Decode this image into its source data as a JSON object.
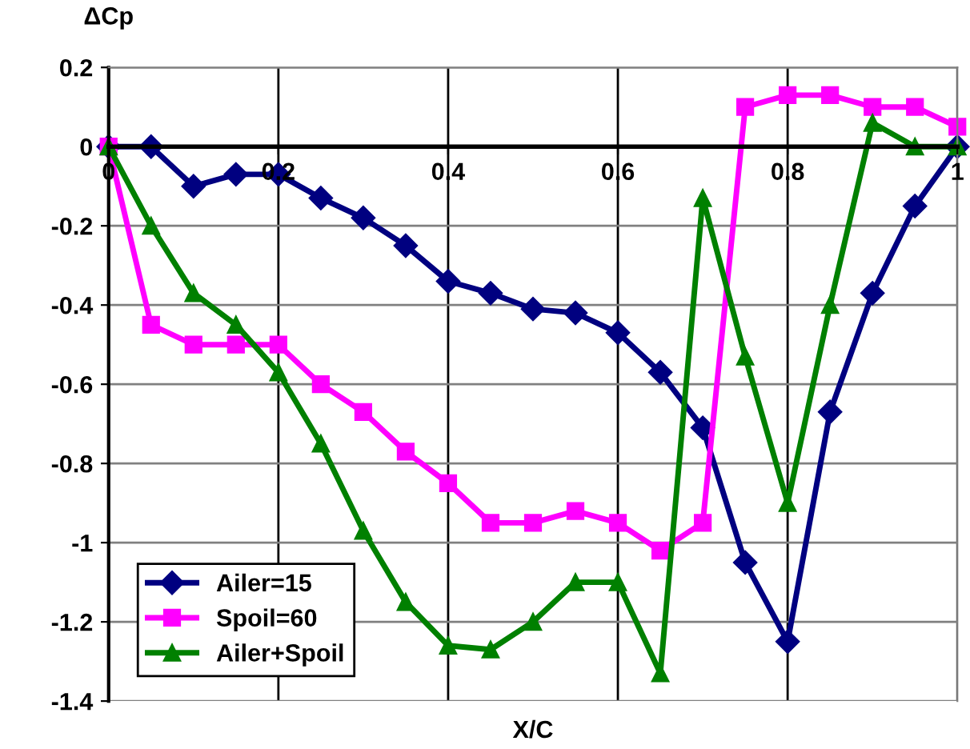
{
  "chart_data": {
    "type": "line",
    "xlabel": "X/C",
    "ylabel": "ΔCp",
    "x": [
      0,
      0.05,
      0.1,
      0.15,
      0.2,
      0.25,
      0.3,
      0.35,
      0.4,
      0.45,
      0.5,
      0.55,
      0.6,
      0.65,
      0.7,
      0.75,
      0.8,
      0.85,
      0.9,
      0.95,
      1.0
    ],
    "series": [
      {
        "name": "Ailer=15",
        "color": "#000080",
        "marker": "diamond",
        "values": [
          0,
          0,
          -0.1,
          -0.07,
          -0.07,
          -0.13,
          -0.18,
          -0.25,
          -0.34,
          -0.37,
          -0.41,
          -0.42,
          -0.47,
          -0.57,
          -0.71,
          -1.05,
          -1.25,
          -0.67,
          -0.37,
          -0.15,
          0
        ]
      },
      {
        "name": "Spoil=60",
        "color": "#ff00ff",
        "marker": "square",
        "values": [
          0,
          -0.45,
          -0.5,
          -0.5,
          -0.5,
          -0.6,
          -0.67,
          -0.77,
          -0.85,
          -0.95,
          -0.95,
          -0.92,
          -0.95,
          -1.02,
          -0.95,
          0.1,
          0.13,
          0.13,
          0.1,
          0.1,
          0.05
        ]
      },
      {
        "name": "Ailer+Spoil",
        "color": "#008000",
        "marker": "triangle",
        "values": [
          0,
          -0.2,
          -0.37,
          -0.45,
          -0.57,
          -0.75,
          -0.97,
          -1.15,
          -1.26,
          -1.27,
          -1.2,
          -1.1,
          -1.1,
          -1.33,
          -0.13,
          -0.53,
          -0.9,
          -0.4,
          0.06,
          0,
          0
        ]
      }
    ],
    "xlim": [
      0,
      1
    ],
    "xticks": [
      0,
      0.2,
      0.4,
      0.6,
      0.8,
      1
    ],
    "ylim": [
      -1.4,
      0.2
    ],
    "yticks": [
      -1.4,
      -1.2,
      -1,
      -0.8,
      -0.6,
      -0.4,
      -0.2,
      0,
      0.2
    ],
    "grid": true,
    "legend": "bottom left",
    "line_style": "solid"
  }
}
